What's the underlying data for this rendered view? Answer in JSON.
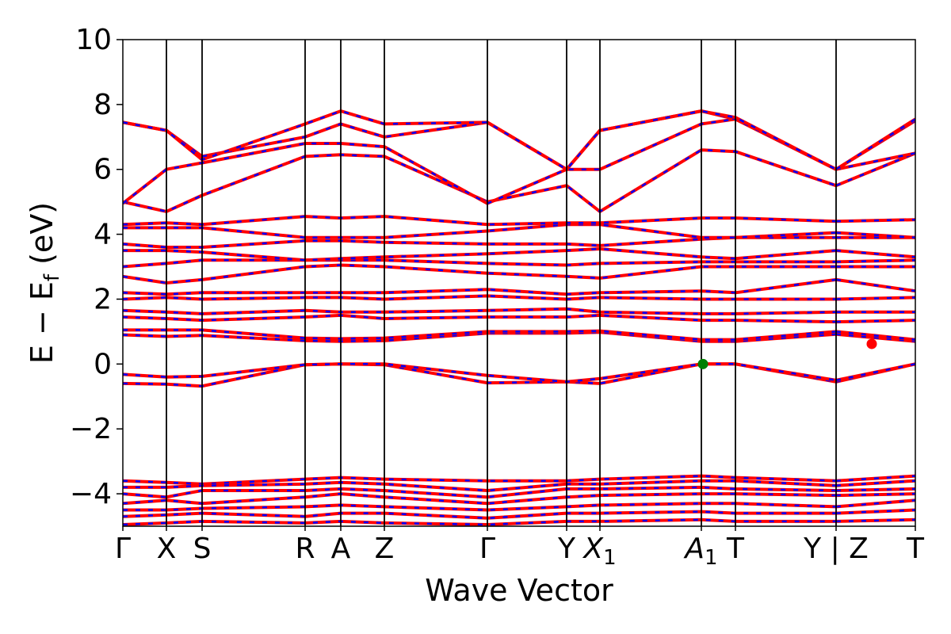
{
  "chart_data": {
    "type": "line",
    "title": "",
    "xlabel": "Wave Vector",
    "ylabel": "E − E",
    "ylabel_sub": "f",
    "ylabel_unit": " (eV)",
    "ylim": [
      -5,
      10
    ],
    "yticks": [
      {
        "value": 10,
        "label": "10"
      },
      {
        "value": 8,
        "label": "8"
      },
      {
        "value": 6,
        "label": "6"
      },
      {
        "value": 4,
        "label": "4"
      },
      {
        "value": 2,
        "label": "2"
      },
      {
        "value": 0,
        "label": "0"
      },
      {
        "value": -2,
        "label": "−2"
      },
      {
        "value": -4,
        "label": "−4"
      }
    ],
    "kpoints": [
      {
        "label": "Γ",
        "sub": "",
        "italic": false,
        "x": 0
      },
      {
        "label": "X",
        "sub": "",
        "italic": false,
        "x": 0.55
      },
      {
        "label": "S",
        "sub": "",
        "italic": false,
        "x": 1.0
      },
      {
        "label": "R",
        "sub": "",
        "italic": false,
        "x": 2.3
      },
      {
        "label": "A",
        "sub": "",
        "italic": false,
        "x": 2.75
      },
      {
        "label": "Z",
        "sub": "",
        "italic": false,
        "x": 3.3
      },
      {
        "label": "Γ",
        "sub": "",
        "italic": false,
        "x": 4.6
      },
      {
        "label": "Y",
        "sub": "",
        "italic": false,
        "x": 5.6
      },
      {
        "label": "X",
        "sub": "1",
        "italic": true,
        "x": 6.02
      },
      {
        "label": "A",
        "sub": "1",
        "italic": true,
        "x": 7.3
      },
      {
        "label": "T",
        "sub": "",
        "italic": false,
        "x": 7.73
      },
      {
        "label": "Y | Z",
        "sub": "",
        "italic": false,
        "x": 9.0
      },
      {
        "label": "T",
        "sub": "",
        "italic": false,
        "x": 10.0
      }
    ],
    "xlim": [
      0,
      10.0
    ],
    "break_x": 9.0,
    "series": [
      {
        "color": "#ff0000",
        "style": "solid",
        "values": []
      },
      {
        "color": "#0000ff",
        "style": "dashed",
        "values": []
      }
    ],
    "bands": [
      {
        "x": [
          0,
          0.55,
          1.0,
          2.3,
          2.75,
          3.3,
          4.6,
          5.6,
          6.02,
          7.3,
          7.73,
          9.0,
          10.0
        ],
        "y": [
          -0.6,
          -0.62,
          -0.68,
          -0.02,
          0.0,
          -0.02,
          -0.58,
          -0.55,
          -0.6,
          0.0,
          0.0,
          -0.55,
          0.0
        ]
      },
      {
        "x": [
          0,
          0.55,
          1.0,
          2.3,
          2.75,
          3.3,
          4.6,
          5.6,
          6.02,
          7.3,
          7.73,
          9.0,
          10.0
        ],
        "y": [
          -0.32,
          -0.4,
          -0.38,
          -0.02,
          0.0,
          0.0,
          -0.35,
          -0.55,
          -0.45,
          0.0,
          0.0,
          -0.5,
          0.0
        ]
      },
      {
        "x": [
          0,
          0.55,
          1.0,
          2.3,
          2.75,
          3.3,
          4.6,
          5.6,
          6.02,
          7.3,
          7.73,
          9.0,
          10.0
        ],
        "y": [
          0.9,
          0.85,
          0.88,
          0.72,
          0.7,
          0.72,
          0.95,
          0.95,
          0.98,
          0.7,
          0.7,
          0.92,
          0.7
        ]
      },
      {
        "x": [
          0,
          0.55,
          1.0,
          2.3,
          2.75,
          3.3,
          4.6,
          5.6,
          6.02,
          7.3,
          7.73,
          9.0,
          10.0
        ],
        "y": [
          1.05,
          1.05,
          1.05,
          0.8,
          0.78,
          0.8,
          1.0,
          1.0,
          1.02,
          0.75,
          0.75,
          1.0,
          0.75
        ]
      },
      {
        "x": [
          0,
          0.55,
          1.0,
          2.3,
          2.75,
          3.3,
          4.6,
          5.6,
          6.02,
          7.3,
          7.73,
          9.0,
          10.0
        ],
        "y": [
          1.45,
          1.4,
          1.35,
          1.45,
          1.5,
          1.4,
          1.45,
          1.45,
          1.5,
          1.35,
          1.35,
          1.3,
          1.35
        ]
      },
      {
        "x": [
          0,
          0.55,
          1.0,
          2.3,
          2.75,
          3.3,
          4.6,
          5.6,
          6.02,
          7.3,
          7.73,
          9.0,
          10.0
        ],
        "y": [
          1.65,
          1.6,
          1.55,
          1.65,
          1.6,
          1.6,
          1.65,
          1.7,
          1.6,
          1.55,
          1.55,
          1.6,
          1.6
        ]
      },
      {
        "x": [
          0,
          0.55,
          1.0,
          2.3,
          2.75,
          3.3,
          4.6,
          5.6,
          6.02,
          7.3,
          7.73,
          9.0,
          10.0
        ],
        "y": [
          2.0,
          2.05,
          2.0,
          2.05,
          2.05,
          2.0,
          2.1,
          2.0,
          2.05,
          2.0,
          2.0,
          2.0,
          2.05
        ]
      },
      {
        "x": [
          0,
          0.55,
          1.0,
          2.3,
          2.75,
          3.3,
          4.6,
          5.6,
          6.02,
          7.3,
          7.73,
          9.0,
          10.0
        ],
        "y": [
          2.2,
          2.15,
          2.2,
          2.2,
          2.2,
          2.2,
          2.3,
          2.15,
          2.2,
          2.25,
          2.2,
          2.6,
          2.25
        ]
      },
      {
        "x": [
          0,
          0.55,
          1.0,
          2.3,
          2.75,
          3.3,
          4.6,
          5.6,
          6.02,
          7.3,
          7.73,
          9.0,
          10.0
        ],
        "y": [
          2.7,
          2.5,
          2.6,
          3.0,
          3.05,
          3.0,
          2.8,
          2.7,
          2.65,
          3.0,
          3.0,
          3.0,
          3.0
        ]
      },
      {
        "x": [
          0,
          0.55,
          1.0,
          2.3,
          2.75,
          3.3,
          4.6,
          5.6,
          6.02,
          7.3,
          7.73,
          9.0,
          10.0
        ],
        "y": [
          3.0,
          3.1,
          3.2,
          3.2,
          3.2,
          3.2,
          3.1,
          3.05,
          3.1,
          3.15,
          3.15,
          3.15,
          3.2
        ]
      },
      {
        "x": [
          0,
          0.55,
          1.0,
          2.3,
          2.75,
          3.3,
          4.6,
          5.6,
          6.02,
          7.3,
          7.73,
          9.0,
          10.0
        ],
        "y": [
          3.5,
          3.5,
          3.45,
          3.2,
          3.25,
          3.3,
          3.4,
          3.5,
          3.55,
          3.3,
          3.25,
          3.5,
          3.3
        ]
      },
      {
        "x": [
          0,
          0.55,
          1.0,
          2.3,
          2.75,
          3.3,
          4.6,
          5.6,
          6.02,
          7.3,
          7.73,
          9.0,
          10.0
        ],
        "y": [
          3.7,
          3.6,
          3.6,
          3.8,
          3.8,
          3.75,
          3.7,
          3.7,
          3.65,
          3.85,
          3.9,
          3.9,
          3.9
        ]
      },
      {
        "x": [
          0,
          0.55,
          1.0,
          2.3,
          2.75,
          3.3,
          4.6,
          5.6,
          6.02,
          7.3,
          7.73,
          9.0,
          10.0
        ],
        "y": [
          4.2,
          4.2,
          4.2,
          3.9,
          3.9,
          3.9,
          4.1,
          4.3,
          4.3,
          3.9,
          3.9,
          4.05,
          3.9
        ]
      },
      {
        "x": [
          0,
          0.55,
          1.0,
          2.3,
          2.75,
          3.3,
          4.6,
          5.6,
          6.02,
          7.3,
          7.73,
          9.0,
          10.0
        ],
        "y": [
          4.3,
          4.35,
          4.3,
          4.55,
          4.5,
          4.55,
          4.3,
          4.35,
          4.35,
          4.5,
          4.5,
          4.4,
          4.45
        ]
      },
      {
        "x": [
          0,
          0.55,
          1.0,
          2.3,
          2.75,
          3.3,
          4.6,
          5.6,
          6.02,
          7.3,
          7.73,
          9.0,
          10.0
        ],
        "y": [
          5.0,
          4.7,
          5.2,
          6.4,
          6.45,
          6.4,
          5.0,
          5.5,
          4.7,
          6.6,
          6.55,
          5.5,
          6.5
        ]
      },
      {
        "x": [
          0,
          0.55,
          1.0,
          2.3,
          2.75,
          3.3,
          4.6,
          5.6,
          6.02,
          7.3,
          7.73,
          9.0,
          10.0
        ],
        "y": [
          4.95,
          6.0,
          6.2,
          6.8,
          6.8,
          6.7,
          4.95,
          6.0,
          6.0,
          7.4,
          7.55,
          6.0,
          6.5
        ]
      },
      {
        "x": [
          0,
          0.55,
          1.0,
          2.3,
          2.75,
          3.3,
          4.6,
          5.6,
          6.02,
          7.3,
          7.73,
          9.0,
          10.0
        ],
        "y": [
          7.45,
          7.2,
          6.4,
          7.0,
          7.4,
          7.0,
          7.45,
          6.0,
          7.2,
          7.8,
          7.55,
          6.0,
          7.5
        ]
      },
      {
        "x": [
          0,
          0.55,
          1.0,
          2.3,
          2.75,
          3.3,
          4.6,
          5.6,
          6.02,
          7.3,
          7.73,
          9.0,
          10.0
        ],
        "y": [
          7.45,
          7.2,
          6.3,
          7.4,
          7.8,
          7.4,
          7.45,
          6.0,
          7.2,
          7.8,
          7.6,
          6.0,
          7.55
        ]
      },
      {
        "x": [
          0,
          0.55,
          1.0,
          2.3,
          2.75,
          3.3,
          4.6,
          5.6,
          6.02,
          7.3,
          7.73,
          9.0,
          10.0
        ],
        "y": [
          -3.6,
          -3.65,
          -3.7,
          -3.55,
          -3.5,
          -3.55,
          -3.6,
          -3.6,
          -3.55,
          -3.45,
          -3.5,
          -3.6,
          -3.45
        ]
      },
      {
        "x": [
          0,
          0.55,
          1.0,
          2.3,
          2.75,
          3.3,
          4.6,
          5.6,
          6.02,
          7.3,
          7.73,
          9.0,
          10.0
        ],
        "y": [
          -3.8,
          -3.8,
          -3.75,
          -3.7,
          -3.65,
          -3.7,
          -3.9,
          -3.7,
          -3.7,
          -3.6,
          -3.6,
          -3.75,
          -3.6
        ]
      },
      {
        "x": [
          0,
          0.55,
          1.0,
          2.3,
          2.75,
          3.3,
          4.6,
          5.6,
          6.02,
          7.3,
          7.73,
          9.0,
          10.0
        ],
        "y": [
          -4.0,
          -4.1,
          -3.9,
          -3.9,
          -3.85,
          -3.9,
          -4.1,
          -3.85,
          -3.85,
          -3.8,
          -3.85,
          -3.9,
          -3.85
        ]
      },
      {
        "x": [
          0,
          0.55,
          1.0,
          2.3,
          2.75,
          3.3,
          4.6,
          5.6,
          6.02,
          7.3,
          7.73,
          9.0,
          10.0
        ],
        "y": [
          -4.3,
          -4.2,
          -4.3,
          -4.1,
          -4.0,
          -4.1,
          -4.3,
          -4.1,
          -4.05,
          -4.0,
          -4.0,
          -4.05,
          -4.0
        ]
      },
      {
        "x": [
          0,
          0.55,
          1.0,
          2.3,
          2.75,
          3.3,
          4.6,
          5.6,
          6.02,
          7.3,
          7.73,
          9.0,
          10.0
        ],
        "y": [
          -4.5,
          -4.5,
          -4.45,
          -4.4,
          -4.35,
          -4.4,
          -4.5,
          -4.4,
          -4.35,
          -4.3,
          -4.3,
          -4.4,
          -4.2
        ]
      },
      {
        "x": [
          0,
          0.55,
          1.0,
          2.3,
          2.75,
          3.3,
          4.6,
          5.6,
          6.02,
          7.3,
          7.73,
          9.0,
          10.0
        ],
        "y": [
          -4.7,
          -4.65,
          -4.6,
          -4.7,
          -4.6,
          -4.6,
          -4.75,
          -4.6,
          -4.6,
          -4.55,
          -4.6,
          -4.6,
          -4.5
        ]
      },
      {
        "x": [
          0,
          0.55,
          1.0,
          2.3,
          2.75,
          3.3,
          4.6,
          5.6,
          6.02,
          7.3,
          7.73,
          9.0,
          10.0
        ],
        "y": [
          -4.95,
          -4.9,
          -4.85,
          -4.9,
          -4.85,
          -4.9,
          -4.95,
          -4.85,
          -4.85,
          -4.8,
          -4.85,
          -4.85,
          -4.8
        ]
      }
    ],
    "points": [
      {
        "x": 7.32,
        "y": 0.0,
        "color": "#007f00"
      },
      {
        "x": 9.45,
        "y": 0.62,
        "color": "#ff0000"
      }
    ],
    "grid": false,
    "legend": "none"
  }
}
